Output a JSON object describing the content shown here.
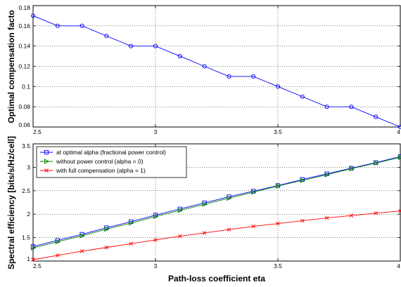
{
  "chart_data": [
    {
      "type": "line",
      "title": "",
      "xlabel": "",
      "ylabel": "Optimal compensation facto",
      "xlim": [
        2.5,
        4
      ],
      "ylim": [
        0.06,
        0.18
      ],
      "grid": true,
      "xticks": [
        2.5,
        3,
        3.5,
        4
      ],
      "xtick_labels": [
        "2.5",
        "3",
        "3.5",
        "4"
      ],
      "yticks": [
        0.06,
        0.08,
        0.1,
        0.12,
        0.14,
        0.16,
        0.18
      ],
      "ytick_labels": [
        "0.06",
        "0.08",
        "0.1",
        "0.12",
        "0.14",
        "0.16",
        "0.18"
      ],
      "x": [
        2.5,
        2.6,
        2.7,
        2.8,
        2.9,
        3.0,
        3.1,
        3.2,
        3.3,
        3.4,
        3.5,
        3.6,
        3.7,
        3.8,
        3.9,
        4.0
      ],
      "series": [
        {
          "color": "#0000ff",
          "marker": "circle",
          "values": [
            0.17,
            0.16,
            0.16,
            0.15,
            0.14,
            0.14,
            0.13,
            0.12,
            0.11,
            0.11,
            0.1,
            0.09,
            0.08,
            0.08,
            0.07,
            0.06
          ]
        }
      ]
    },
    {
      "type": "line",
      "title": "",
      "xlabel": "Path-loss coefficient eta",
      "ylabel": "Spectral efficiency [bits/s/Hz/cell]",
      "xlim": [
        2.5,
        4
      ],
      "ylim": [
        1,
        3.5
      ],
      "grid": true,
      "legend": "top-left",
      "xticks": [
        2.5,
        3,
        3.5,
        4
      ],
      "xtick_labels": [
        "2.5",
        "3",
        "3.5",
        "4"
      ],
      "yticks": [
        1,
        1.5,
        2,
        2.5,
        3,
        3.5
      ],
      "ytick_labels": [
        "1",
        "1.5",
        "2",
        "2.5",
        "3",
        "3.5"
      ],
      "x": [
        2.5,
        2.6,
        2.7,
        2.8,
        2.9,
        3.0,
        3.1,
        3.2,
        3.3,
        3.4,
        3.5,
        3.6,
        3.7,
        3.8,
        3.9,
        4.0
      ],
      "series": [
        {
          "name": "at optimal alpha (fractional power control)",
          "color": "#0000ff",
          "marker": "square",
          "values": [
            1.31,
            1.44,
            1.57,
            1.71,
            1.84,
            1.98,
            2.11,
            2.24,
            2.37,
            2.49,
            2.61,
            2.74,
            2.86,
            2.98,
            3.1,
            3.23
          ]
        },
        {
          "name": "without power control (alpha = 0)",
          "color": "#008000",
          "marker": "triangle-right",
          "values": [
            1.28,
            1.41,
            1.54,
            1.68,
            1.81,
            1.95,
            2.08,
            2.21,
            2.34,
            2.47,
            2.6,
            2.72,
            2.84,
            2.97,
            3.09,
            3.21
          ]
        },
        {
          "name": "with full compensation (alpha = 1)",
          "color": "#ff0000",
          "marker": "x",
          "values": [
            1.03,
            1.12,
            1.21,
            1.29,
            1.37,
            1.45,
            1.53,
            1.6,
            1.67,
            1.74,
            1.8,
            1.86,
            1.92,
            1.97,
            2.02,
            2.07
          ]
        }
      ]
    }
  ]
}
